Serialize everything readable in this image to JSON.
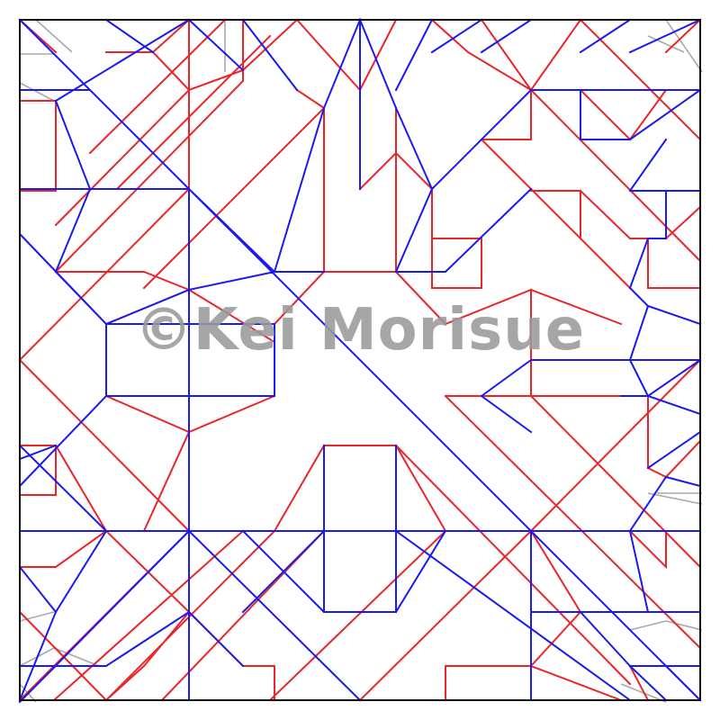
{
  "watermark": {
    "text": "©Kei Morisue"
  },
  "legend": {
    "mountain_color": "#e8262a",
    "valley_color": "#1a1aee",
    "auxiliary_color": "#a9a9a9",
    "border_color": "#111111"
  }
}
